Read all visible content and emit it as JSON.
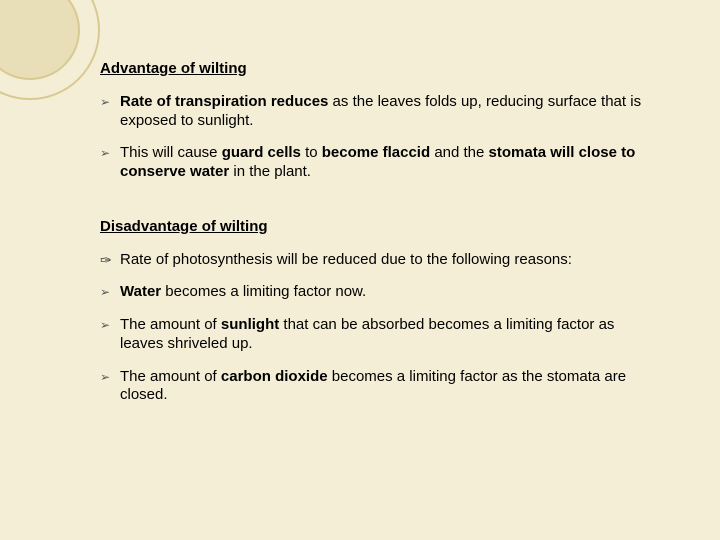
{
  "colors": {
    "background": "#f5eed7",
    "ring_border": "#d8c990",
    "ring_fill": "#e8dfb8",
    "text": "#000000",
    "bullet": "#555555"
  },
  "typography": {
    "font_family": "Arial, sans-serif",
    "body_fontsize": 15,
    "heading_weight": "bold"
  },
  "headings": {
    "advantage": "Advantage of wilting",
    "disadvantage": "Disadvantage of wilting"
  },
  "advantage_points": [
    {
      "pre": " ",
      "bold": "Rate of transpiration reduces",
      "post": " as the leaves folds up, reducing surface that is exposed to sunlight."
    },
    {
      "pre": " This will cause ",
      "bold": "guard cells",
      "mid": " to ",
      "bold2": "become flaccid",
      "mid2": " and the ",
      "bold3": "stomata will close to conserve water",
      "post": " in the plant."
    }
  ],
  "disadvantage_intro": "Rate of photosynthesis will be reduced due to the following reasons:",
  "disadvantage_points": [
    {
      "pre": " ",
      "bold": "Water",
      "post": " becomes a limiting factor now."
    },
    {
      "pre": " The amount of ",
      "bold": "sunlight",
      "post": " that can be absorbed becomes a limiting factor as leaves shriveled up."
    },
    {
      "pre": " The amount of ",
      "bold": "carbon dioxide",
      "post": " becomes a limiting factor as the stomata are closed."
    }
  ],
  "bullets": {
    "arrow": "➢",
    "swirl": "✑"
  }
}
